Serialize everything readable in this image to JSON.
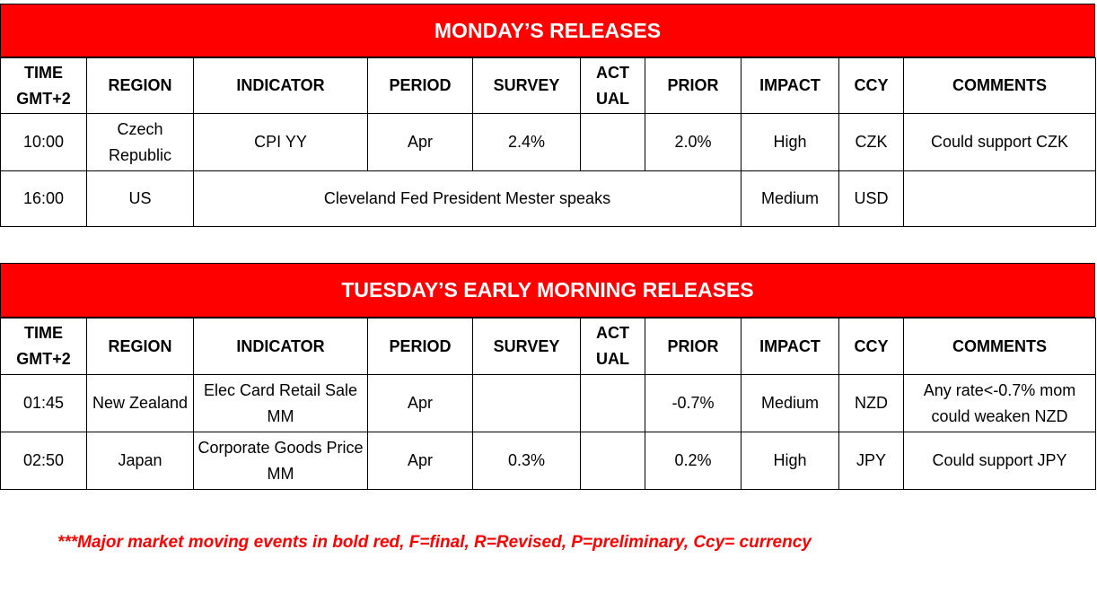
{
  "headers": [
    "TIME\nGMT+2",
    "REGION",
    "INDICATOR",
    "PERIOD",
    "SURVEY",
    "ACT\nUAL",
    "PRIOR",
    "IMPACT",
    "CCY",
    "COMMENTS"
  ],
  "monday": {
    "title": "MONDAY’S  RELEASES",
    "rows": [
      {
        "time": "10:00",
        "region": "Czech Republic",
        "indicator": "CPI YY",
        "period": "Apr",
        "survey": "2.4%",
        "actual": "",
        "prior": "2.0%",
        "impact": "High",
        "ccy": "CZK",
        "comments": "Could support CZK"
      },
      {
        "time": "16:00",
        "region": "US",
        "indicator": "Cleveland Fed President Mester speaks",
        "impact": "Medium",
        "ccy": "USD",
        "comments": ""
      }
    ]
  },
  "tuesday": {
    "title": "TUESDAY’S EARLY MORNING RELEASES",
    "rows": [
      {
        "time": "01:45",
        "region": "New Zealand",
        "indicator": "Elec Card Retail Sale MM",
        "period": "Apr",
        "survey": "",
        "actual": "",
        "prior": "-0.7%",
        "impact": "Medium",
        "ccy": "NZD",
        "comments": "Any rate<-0.7% mom could weaken NZD"
      },
      {
        "time": "02:50",
        "region": "Japan",
        "indicator": "Corporate Goods Price MM",
        "period": "Apr",
        "survey": "0.3%",
        "actual": "",
        "prior": "0.2%",
        "impact": "High",
        "ccy": "JPY",
        "comments": "Could support JPY"
      }
    ]
  },
  "footnote": "***Major market moving events in bold red, F=final, R=Revised, P=preliminary, Ccy= currency"
}
